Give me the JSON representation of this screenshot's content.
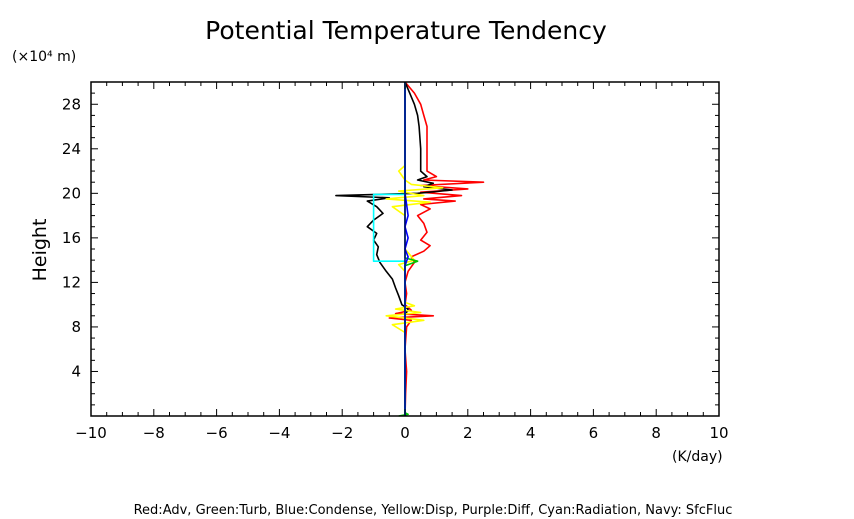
{
  "chart_data": {
    "type": "line",
    "title": "Potential Temperature Tendency",
    "ylabel": "Height",
    "y_unit": "(×10⁴ m)",
    "x_unit": "(K/day)",
    "xlim": [
      -10,
      10
    ],
    "ylim": [
      0,
      30
    ],
    "x_ticks": [
      -10,
      -8,
      -6,
      -4,
      -2,
      0,
      2,
      4,
      6,
      8,
      10
    ],
    "x_tick_labels": [
      "−10",
      "−8",
      "−6",
      "−4",
      "−2",
      "0",
      "2",
      "4",
      "6",
      "8",
      "10"
    ],
    "y_ticks": [
      4,
      8,
      12,
      16,
      20,
      24,
      28
    ],
    "y_tick_labels": [
      "4",
      "8",
      "12",
      "16",
      "20",
      "24",
      "28"
    ],
    "grid": false,
    "legend_text": "Red:Adv, Green:Turb, Blue:Condense, Yellow:Disp, Purple:Diff, Cyan:Radiation, Navy: SfcFluc",
    "series": [
      {
        "color": "#ff0000",
        "points": [
          [
            0,
            0
          ],
          [
            0.02,
            2
          ],
          [
            0.05,
            4
          ],
          [
            0,
            6
          ],
          [
            0.05,
            8
          ],
          [
            0.2,
            8.6
          ],
          [
            -0.5,
            8.8
          ],
          [
            0.9,
            9.0
          ],
          [
            -0.3,
            9.2
          ],
          [
            0.2,
            9.5
          ],
          [
            0,
            10
          ],
          [
            0.05,
            11
          ],
          [
            0,
            12
          ],
          [
            0.1,
            13
          ],
          [
            0.3,
            13.8
          ],
          [
            0.2,
            14.3
          ],
          [
            0.6,
            14.8
          ],
          [
            0.8,
            15.3
          ],
          [
            0.5,
            15.8
          ],
          [
            0.7,
            16.5
          ],
          [
            0.6,
            17.3
          ],
          [
            0.4,
            18
          ],
          [
            0.8,
            18.6
          ],
          [
            0.5,
            19
          ],
          [
            1.6,
            19.3
          ],
          [
            0.6,
            19.5
          ],
          [
            1.8,
            19.8
          ],
          [
            0.5,
            20.1
          ],
          [
            2.0,
            20.4
          ],
          [
            0.5,
            20.7
          ],
          [
            2.5,
            21.0
          ],
          [
            0.6,
            21.2
          ],
          [
            1.0,
            21.5
          ],
          [
            0.7,
            22
          ],
          [
            0.7,
            24
          ],
          [
            0.7,
            26
          ],
          [
            0.6,
            27
          ],
          [
            0.5,
            28
          ],
          [
            0.3,
            29
          ],
          [
            0,
            30
          ]
        ]
      },
      {
        "color": "#000000",
        "points": [
          [
            0,
            0
          ],
          [
            0,
            5
          ],
          [
            0,
            9
          ],
          [
            0.1,
            9.6
          ],
          [
            -0.1,
            10
          ],
          [
            -0.2,
            10.8
          ],
          [
            -0.3,
            11.5
          ],
          [
            -0.4,
            12.3
          ],
          [
            -0.6,
            13.0
          ],
          [
            -0.8,
            13.8
          ],
          [
            -0.9,
            14.5
          ],
          [
            -0.85,
            15.2
          ],
          [
            -1.0,
            15.8
          ],
          [
            -0.9,
            16.4
          ],
          [
            -1.2,
            17.0
          ],
          [
            -1.0,
            17.6
          ],
          [
            -0.7,
            18.2
          ],
          [
            -0.9,
            18.8
          ],
          [
            -1.2,
            19.3
          ],
          [
            -0.5,
            19.6
          ],
          [
            -2.2,
            19.8
          ],
          [
            0.4,
            20.0
          ],
          [
            1.5,
            20.3
          ],
          [
            0.6,
            20.6
          ],
          [
            0.9,
            20.9
          ],
          [
            0.4,
            21.2
          ],
          [
            0.7,
            21.5
          ],
          [
            0.5,
            22
          ],
          [
            0.5,
            24
          ],
          [
            0.45,
            26
          ],
          [
            0.4,
            27
          ],
          [
            0.3,
            28
          ],
          [
            0.15,
            29
          ],
          [
            0,
            30
          ]
        ]
      },
      {
        "color": "#ffff00",
        "points": [
          [
            0,
            0
          ],
          [
            0,
            7.5
          ],
          [
            -0.4,
            8.2
          ],
          [
            0.6,
            8.6
          ],
          [
            -0.6,
            9.0
          ],
          [
            0.5,
            9.3
          ],
          [
            -0.3,
            9.6
          ],
          [
            0.3,
            9.9
          ],
          [
            0,
            10.2
          ],
          [
            0,
            13
          ],
          [
            -0.2,
            13.6
          ],
          [
            0.3,
            14
          ],
          [
            0,
            15
          ],
          [
            0,
            18
          ],
          [
            -0.4,
            18.8
          ],
          [
            0.8,
            19.2
          ],
          [
            -0.6,
            19.5
          ],
          [
            0.6,
            19.8
          ],
          [
            -0.2,
            20.2
          ],
          [
            1.2,
            20.5
          ],
          [
            0.2,
            20.8
          ],
          [
            0,
            21.2
          ],
          [
            -0.2,
            22
          ],
          [
            0,
            22.5
          ],
          [
            0,
            30
          ]
        ]
      },
      {
        "color": "#00c800",
        "points": [
          [
            -0.2,
            0
          ],
          [
            0.1,
            0.15
          ],
          [
            0,
            0.3
          ],
          [
            0,
            13.5
          ],
          [
            0.4,
            13.9
          ],
          [
            0,
            14.2
          ],
          [
            0,
            30
          ]
        ]
      },
      {
        "color": "#0000ff",
        "points": [
          [
            0,
            0
          ],
          [
            0,
            13.5
          ],
          [
            0.1,
            14.3
          ],
          [
            0,
            15
          ],
          [
            0.1,
            16
          ],
          [
            0,
            17
          ],
          [
            0.1,
            18
          ],
          [
            0.05,
            19
          ],
          [
            0,
            20
          ],
          [
            0,
            30
          ]
        ]
      },
      {
        "color": "#00ffff",
        "points": [
          [
            0,
            0
          ],
          [
            0,
            13.9
          ],
          [
            -1.0,
            13.9
          ],
          [
            -1.0,
            19.9
          ],
          [
            0,
            19.9
          ],
          [
            0,
            30
          ]
        ]
      },
      {
        "color": "#000080",
        "points": [
          [
            0,
            0
          ],
          [
            0,
            30
          ]
        ]
      }
    ]
  }
}
